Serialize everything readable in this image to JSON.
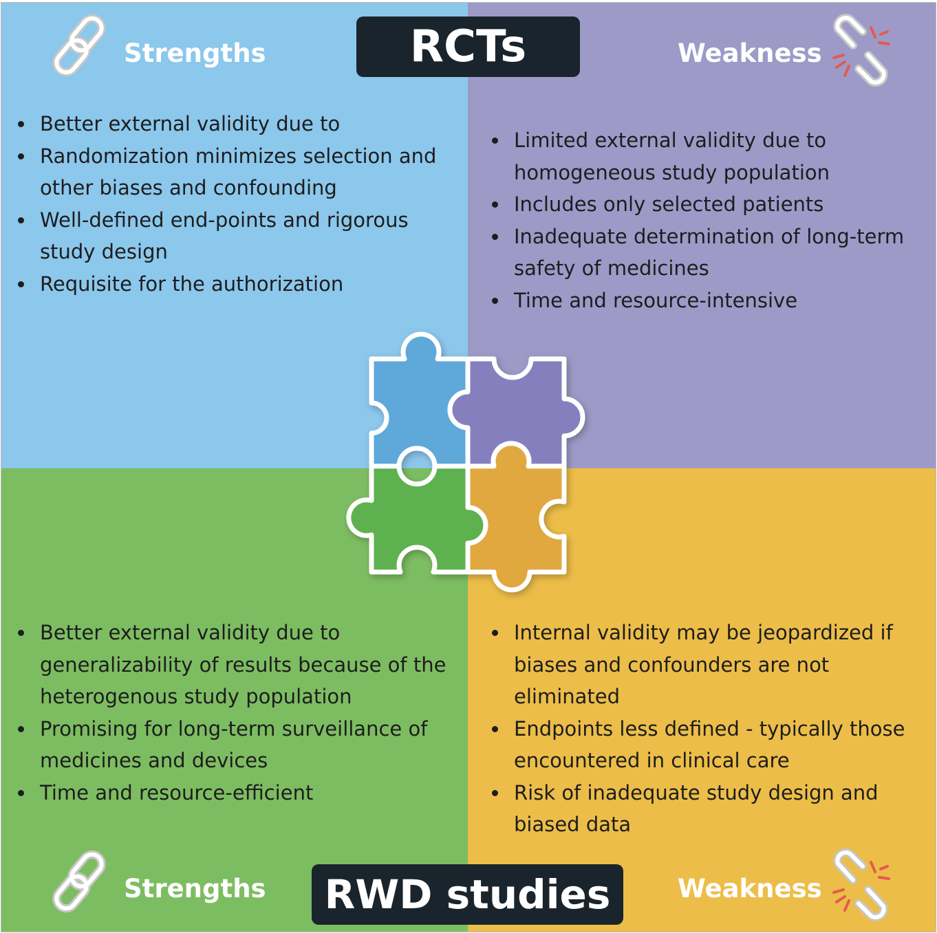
{
  "titles": {
    "top": "RCTs",
    "bottom": "RWD studies"
  },
  "headers": {
    "top_left": "Strengths",
    "top_right": "Weakness",
    "bottom_left": "Strengths",
    "bottom_right": "Weakness"
  },
  "icons": {
    "strength": "chain-link-icon",
    "weakness": "broken-chain-icon",
    "center": "puzzle-icon"
  },
  "colors": {
    "rct_strengths": "#8cc7ec",
    "rct_weakness": "#9d9ac8",
    "rwd_strengths": "#7dbd62",
    "rwd_weakness": "#ecbd48",
    "title_box": "#1a242c",
    "puzzle_blue": "#5ea8da",
    "puzzle_purple": "#8580bd",
    "puzzle_green": "#5db250",
    "puzzle_orange": "#e1a83f",
    "break_marks": "#e35b4f"
  },
  "rct_strengths": [
    "Better external validity due to",
    "Randomization minimizes selection and other biases and confounding",
    "Well-defined end-points and rigorous study design",
    "Requisite for the authorization"
  ],
  "rct_weakness": [
    "Limited external validity due to homogeneous study population",
    "Includes only selected patients",
    "Inadequate determination of long-term safety of medicines",
    "Time and resource-intensive"
  ],
  "rwd_strengths": [
    "Better external validity due to generalizability of results because of the heterogenous study population",
    "Promising for long-term surveillance of medicines and devices",
    "Time and resource-efficient"
  ],
  "rwd_weakness": [
    "Internal validity may be jeopardized if biases and confounders are not eliminated",
    "Endpoints less defined - typically those encountered in clinical care",
    "Risk of inadequate study design and biased data"
  ]
}
